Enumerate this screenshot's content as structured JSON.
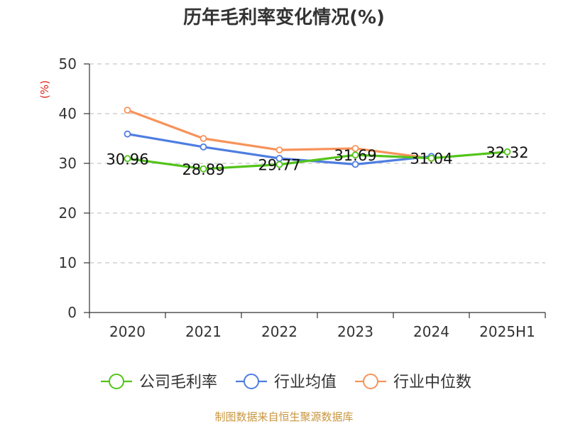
{
  "chart_data": {
    "type": "line",
    "title": "历年毛利率变化情况(%)",
    "ylabel": "(%)",
    "xlabel": "",
    "categories": [
      "2020",
      "2021",
      "2022",
      "2023",
      "2024",
      "2025H1"
    ],
    "ylim": [
      0,
      50
    ],
    "yticks": [
      0,
      10,
      20,
      30,
      40,
      50
    ],
    "grid": true,
    "legend_position": "bottom",
    "series": [
      {
        "name": "公司毛利率",
        "color": "#52c41a",
        "values": [
          30.96,
          28.89,
          29.77,
          31.69,
          31.04,
          32.32
        ],
        "show_labels": true
      },
      {
        "name": "行业均值",
        "color": "#4e7de0",
        "values": [
          35.9,
          33.3,
          31.0,
          29.8,
          31.4,
          null
        ],
        "show_labels": false
      },
      {
        "name": "行业中位数",
        "color": "#f7935a",
        "values": [
          40.7,
          35.0,
          32.7,
          33.0,
          31.0,
          null
        ],
        "show_labels": false
      }
    ]
  },
  "source_text": "制图数据来自恒生聚源数据库",
  "colors": {
    "title": "#333333",
    "axis": "#333333",
    "ylabel": "#e0271b",
    "grid": "#c8c8c8",
    "source": "#c8963e"
  }
}
